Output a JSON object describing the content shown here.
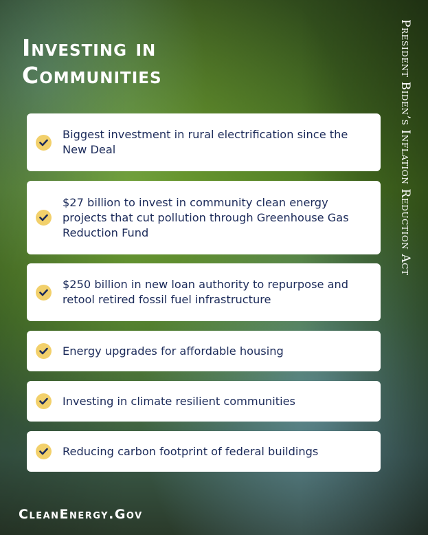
{
  "title_line1": "Investing in",
  "title_line2": "Communities",
  "side_title": "President Biden’s Inflation Reduction Act",
  "items": [
    {
      "text": "Biggest investment in rural electrification since the New Deal",
      "icon": "check-icon"
    },
    {
      "text": "$27 billion to invest in community clean energy projects that cut pollution through Greenhouse Gas Reduction Fund",
      "icon": "check-icon"
    },
    {
      "text": "$250 billion in new loan authority to repurpose and retool retired fossil fuel infrastructure",
      "icon": "check-icon"
    },
    {
      "text": "Energy upgrades for affordable housing",
      "icon": "check-icon"
    },
    {
      "text": "Investing in climate resilient communities",
      "icon": "check-icon"
    },
    {
      "text": "Reducing carbon footprint of federal buildings",
      "icon": "check-icon"
    }
  ],
  "footer": "CleanEnergy.Gov",
  "colors": {
    "text": "#1c2b5a",
    "check_bg": "#f2d06b",
    "card": "#ffffff"
  }
}
